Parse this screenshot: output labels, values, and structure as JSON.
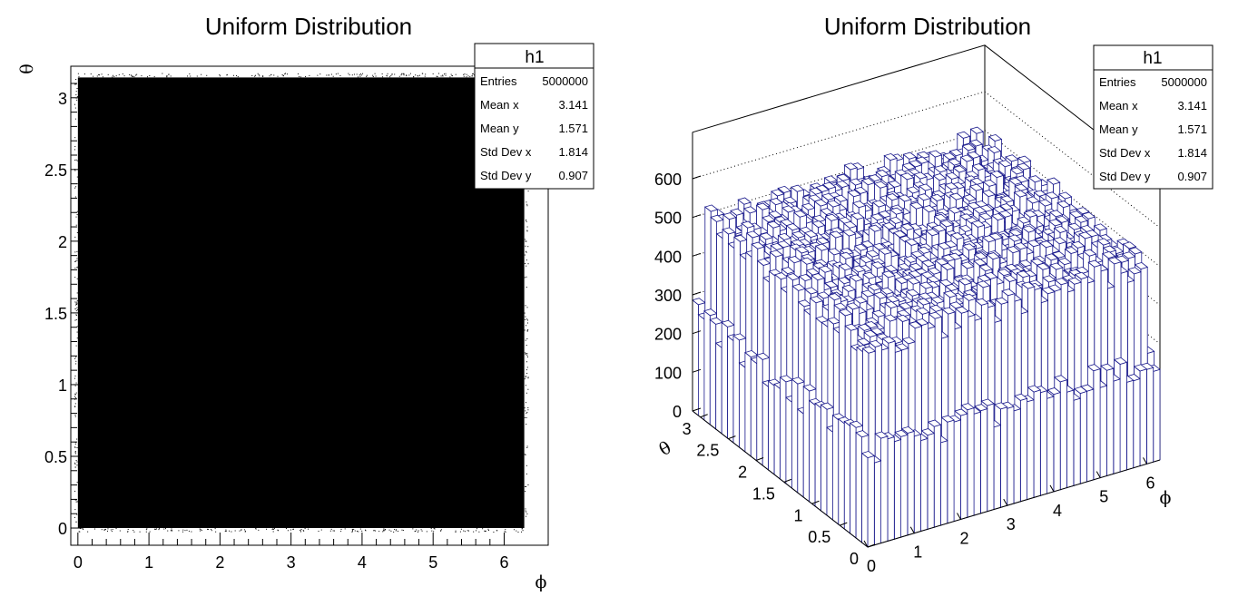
{
  "chart_data": [
    {
      "type": "heatmap",
      "title": "Uniform Distribution",
      "xlabel": "ϕ",
      "ylabel": "θ",
      "xlim": [
        -0.1,
        6.62
      ],
      "ylim": [
        -0.12,
        3.22
      ],
      "x_ticks": [
        "0",
        "1",
        "2",
        "3",
        "4",
        "5",
        "6"
      ],
      "y_ticks": [
        "0",
        "0.5",
        "1",
        "1.5",
        "2",
        "2.5",
        "3"
      ],
      "filled_region": {
        "x": [
          0,
          6.283
        ],
        "y": [
          0,
          3.1416
        ]
      },
      "color": "#000000",
      "stats": {
        "name": "h1",
        "rows": [
          {
            "label": "Entries",
            "value": "5000000"
          },
          {
            "label": "Mean x",
            "value": "3.141"
          },
          {
            "label": "Mean y",
            "value": "1.571"
          },
          {
            "label": "Std Dev x",
            "value": "1.814"
          },
          {
            "label": "Std Dev y",
            "value": "0.907"
          }
        ]
      }
    },
    {
      "type": "bar",
      "style": "lego",
      "title": "Uniform Distribution",
      "xlabel": "ϕ",
      "ylabel": "θ",
      "x_range": [
        0,
        6.283
      ],
      "y_range": [
        0,
        3.1416
      ],
      "x_ticks": [
        "0",
        "1",
        "2",
        "3",
        "4",
        "5",
        "6"
      ],
      "y_ticks": [
        "0",
        "0.5",
        "1",
        "1.5",
        "2",
        "2.5",
        "3"
      ],
      "z_ticks": [
        "0",
        "100",
        "200",
        "300",
        "400",
        "500",
        "600"
      ],
      "zlim": [
        0,
        720
      ],
      "typical_bin_content": 500,
      "edge_bin_content": 250,
      "color": "#1a1a8c",
      "stats": {
        "name": "h1",
        "rows": [
          {
            "label": "Entries",
            "value": "5000000"
          },
          {
            "label": "Mean x",
            "value": "3.141"
          },
          {
            "label": "Mean y",
            "value": "1.571"
          },
          {
            "label": "Std Dev x",
            "value": "1.814"
          },
          {
            "label": "Std Dev y",
            "value": "0.907"
          }
        ]
      }
    }
  ]
}
